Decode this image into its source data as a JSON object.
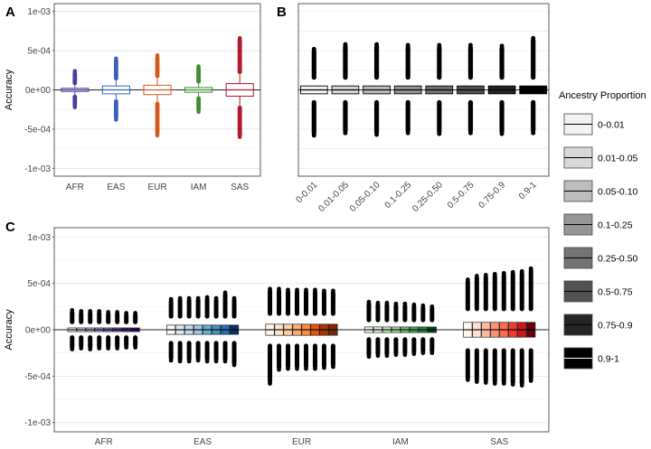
{
  "panel_labels": {
    "a": "A",
    "b": "B",
    "c": "C"
  },
  "legend": {
    "title": "Ancestry Proportion",
    "entries": [
      {
        "label": "0-0.01",
        "color": "#f2f2f2"
      },
      {
        "label": "0.01-0.05",
        "color": "#d9d9d9"
      },
      {
        "label": "0.05-0.10",
        "color": "#bdbdbd"
      },
      {
        "label": "0.1-0.25",
        "color": "#969696"
      },
      {
        "label": "0.25-0.50",
        "color": "#737373"
      },
      {
        "label": "0.5-0.75",
        "color": "#525252"
      },
      {
        "label": "0.75-0.9",
        "color": "#252525"
      },
      {
        "label": "0.9-1",
        "color": "#000000"
      }
    ]
  },
  "chart_data": [
    {
      "panel": "A",
      "type": "box",
      "ylabel": "Accuracy",
      "ylim": [
        -0.0011,
        0.0011
      ],
      "yticks": [
        -0.001,
        -0.0005,
        0,
        0.0005,
        0.001
      ],
      "ytick_labels": [
        "-1e-03",
        "-5e-04",
        "0e+00",
        "5e-04",
        "1e-03"
      ],
      "categories": [
        "AFR",
        "EAS",
        "EUR",
        "IAM",
        "SAS"
      ],
      "colors": [
        "#4b3f9b",
        "#3a5fc1",
        "#d45a1e",
        "#3e8e2f",
        "#b2182b"
      ],
      "boxes": [
        {
          "q1": -2e-05,
          "median": 0.0,
          "q3": 2e-05,
          "whisker_low": -6e-05,
          "whisker_high": 6e-05,
          "outlier_low": -0.00022,
          "outlier_high": 0.00024
        },
        {
          "q1": -5e-05,
          "median": 0.0,
          "q3": 5e-05,
          "whisker_low": -0.00012,
          "whisker_high": 0.00012,
          "outlier_low": -0.00038,
          "outlier_high": 0.0004
        },
        {
          "q1": -6e-05,
          "median": 0.0,
          "q3": 6e-05,
          "whisker_low": -0.00015,
          "whisker_high": 0.00015,
          "outlier_low": -0.00058,
          "outlier_high": 0.00044
        },
        {
          "q1": -3e-05,
          "median": 0.0,
          "q3": 3e-05,
          "whisker_low": -8e-05,
          "whisker_high": 8e-05,
          "outlier_low": -0.00028,
          "outlier_high": 0.0003
        },
        {
          "q1": -8e-05,
          "median": 0.0,
          "q3": 8e-05,
          "whisker_low": -0.0002,
          "whisker_high": 0.0002,
          "outlier_low": -0.0006,
          "outlier_high": 0.00066
        }
      ]
    },
    {
      "panel": "B",
      "type": "box",
      "ylim": [
        -0.0011,
        0.0011
      ],
      "categories": [
        "0-0.01",
        "0.01-0.05",
        "0.05-0.10",
        "0.1-0.25",
        "0.25-0.50",
        "0.5-0.75",
        "0.75-0.9",
        "0.9-1"
      ],
      "colors": [
        "#f2f2f2",
        "#d9d9d9",
        "#bdbdbd",
        "#969696",
        "#737373",
        "#525252",
        "#252525",
        "#000000"
      ],
      "boxes": [
        {
          "q1": -5e-05,
          "median": 0,
          "q3": 5e-05,
          "whisker_low": -0.00013,
          "whisker_high": 0.00013,
          "outlier_low": -0.00058,
          "outlier_high": 0.00052
        },
        {
          "q1": -5e-05,
          "median": 0,
          "q3": 5e-05,
          "whisker_low": -0.00013,
          "whisker_high": 0.00013,
          "outlier_low": -0.00055,
          "outlier_high": 0.00058
        },
        {
          "q1": -5e-05,
          "median": 0,
          "q3": 5e-05,
          "whisker_low": -0.00013,
          "whisker_high": 0.00013,
          "outlier_low": -0.00057,
          "outlier_high": 0.00058
        },
        {
          "q1": -5e-05,
          "median": 0,
          "q3": 5e-05,
          "whisker_low": -0.00013,
          "whisker_high": 0.00013,
          "outlier_low": -0.00055,
          "outlier_high": 0.00057
        },
        {
          "q1": -5e-05,
          "median": 0,
          "q3": 5e-05,
          "whisker_low": -0.00013,
          "whisker_high": 0.00013,
          "outlier_low": -0.00056,
          "outlier_high": 0.00057
        },
        {
          "q1": -5e-05,
          "median": 0,
          "q3": 5e-05,
          "whisker_low": -0.00013,
          "whisker_high": 0.00013,
          "outlier_low": -0.00055,
          "outlier_high": 0.00057
        },
        {
          "q1": -5e-05,
          "median": 0,
          "q3": 5e-05,
          "whisker_low": -0.00013,
          "whisker_high": 0.00013,
          "outlier_low": -0.00056,
          "outlier_high": 0.00056
        },
        {
          "q1": -5e-05,
          "median": 0,
          "q3": 5e-05,
          "whisker_low": -0.00013,
          "whisker_high": 0.00013,
          "outlier_low": -0.00055,
          "outlier_high": 0.00066
        }
      ]
    },
    {
      "panel": "C",
      "type": "box",
      "ylabel": "Accuracy",
      "ylim": [
        -0.0011,
        0.0011
      ],
      "yticks": [
        -0.001,
        -0.0005,
        0,
        0.0005,
        0.001
      ],
      "ytick_labels": [
        "-1e-03",
        "-5e-04",
        "0e+00",
        "5e-04",
        "1e-03"
      ],
      "categories": [
        "AFR",
        "EAS",
        "EUR",
        "IAM",
        "SAS"
      ],
      "group_colors": [
        [
          "#f7f4f9",
          "#dadaeb",
          "#bcbddc",
          "#9e9ac8",
          "#807dba",
          "#6a51a3",
          "#54278f",
          "#3f007d"
        ],
        [
          "#f7fbff",
          "#deebf7",
          "#c6dbef",
          "#9ecae1",
          "#6baed6",
          "#4292c6",
          "#2171b5",
          "#08306b"
        ],
        [
          "#fff5eb",
          "#fee6ce",
          "#fdd0a2",
          "#fdae6b",
          "#fd8d3c",
          "#e6550d",
          "#a63603",
          "#7f2704"
        ],
        [
          "#f7fcf5",
          "#e5f5e0",
          "#c7e9c0",
          "#a1d99b",
          "#74c476",
          "#41ab5d",
          "#238b45",
          "#00441b"
        ],
        [
          "#fff5f0",
          "#fee0d2",
          "#fcbba1",
          "#fc9272",
          "#fb6a4a",
          "#ef3b2c",
          "#cb181d",
          "#67000d"
        ]
      ],
      "groups": [
        {
          "q3": 2e-05,
          "whisker": 6e-05,
          "outlier_high": [
            0.00021,
            0.0002,
            0.0002,
            0.0002,
            0.00019,
            0.00019,
            0.00018,
            0.00018
          ],
          "outlier_low": [
            -0.00021,
            -0.0002,
            -0.00021,
            -0.0002,
            -0.0002,
            -0.0002,
            -0.00019,
            -0.00019
          ]
        },
        {
          "q3": 5e-05,
          "whisker": 0.00012,
          "outlier_high": [
            0.00033,
            0.00034,
            0.00034,
            0.00034,
            0.00035,
            0.00034,
            0.0004,
            0.00034
          ],
          "outlier_low": [
            -0.00033,
            -0.00034,
            -0.00034,
            -0.00033,
            -0.00034,
            -0.00034,
            -0.00034,
            -0.00038
          ]
        },
        {
          "q3": 6e-05,
          "whisker": 0.00015,
          "outlier_high": [
            0.00044,
            0.00044,
            0.00043,
            0.00043,
            0.00043,
            0.00043,
            0.00042,
            0.00042
          ],
          "outlier_low": [
            -0.00058,
            -0.00043,
            -0.00042,
            -0.00042,
            -0.00042,
            -0.00042,
            -0.00041,
            -0.0004
          ]
        },
        {
          "q3": 3e-05,
          "whisker": 8e-05,
          "outlier_high": [
            0.0003,
            0.00029,
            0.00029,
            0.00028,
            0.00028,
            0.00027,
            0.00026,
            0.00025
          ],
          "outlier_low": [
            -0.00029,
            -0.00028,
            -0.00028,
            -0.00027,
            -0.00027,
            -0.00026,
            -0.00025,
            -0.00025
          ]
        },
        {
          "q3": 8e-05,
          "whisker": 0.0002,
          "outlier_high": [
            0.00054,
            0.00058,
            0.00059,
            0.0006,
            0.00061,
            0.00062,
            0.00063,
            0.00066
          ],
          "outlier_low": [
            -0.00054,
            -0.00056,
            -0.00057,
            -0.00058,
            -0.00058,
            -0.00059,
            -0.0006,
            -0.00055
          ]
        }
      ]
    }
  ]
}
